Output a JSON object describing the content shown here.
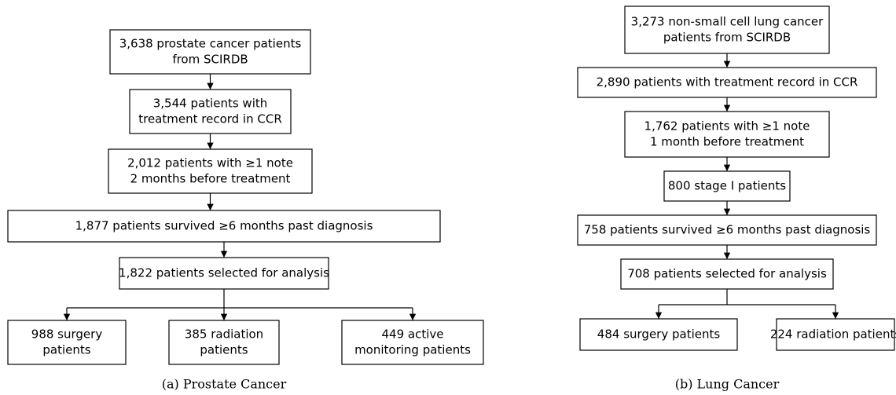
{
  "panels": [
    {
      "nodes": [
        {
          "lines": [
            "3,638 prostate cancer patients",
            "from SCIRDB"
          ]
        },
        {
          "lines": [
            "3,544 patients with",
            "treatment record in CCR"
          ]
        },
        {
          "lines": [
            "2,012 patients with ≥1 note",
            "2 months before treatment"
          ]
        },
        {
          "lines": [
            "1,877 patients survived ≥6 months past diagnosis"
          ]
        },
        {
          "lines": [
            "1,822 patients selected for analysis"
          ]
        },
        {
          "lines": [
            "988 surgery",
            "patients"
          ]
        },
        {
          "lines": [
            "385 radiation",
            "patients"
          ]
        },
        {
          "lines": [
            "449 active",
            "monitoring patients"
          ]
        }
      ],
      "caption": "(a) Prostate Cancer"
    },
    {
      "nodes": [
        {
          "lines": [
            "3,273 non-small cell lung cancer",
            "patients from SCIRDB"
          ]
        },
        {
          "lines": [
            "2,890 patients with treatment record in CCR"
          ]
        },
        {
          "lines": [
            "1,762 patients with ≥1 note",
            "1 month before treatment"
          ]
        },
        {
          "lines": [
            "800 stage I patients"
          ]
        },
        {
          "lines": [
            "758 patients survived ≥6 months past diagnosis"
          ]
        },
        {
          "lines": [
            "708 patients selected for analysis"
          ]
        },
        {
          "lines": [
            "484 surgery patients"
          ]
        },
        {
          "lines": [
            "224 radiation patients"
          ]
        }
      ],
      "caption": "(b) Lung Cancer"
    }
  ]
}
